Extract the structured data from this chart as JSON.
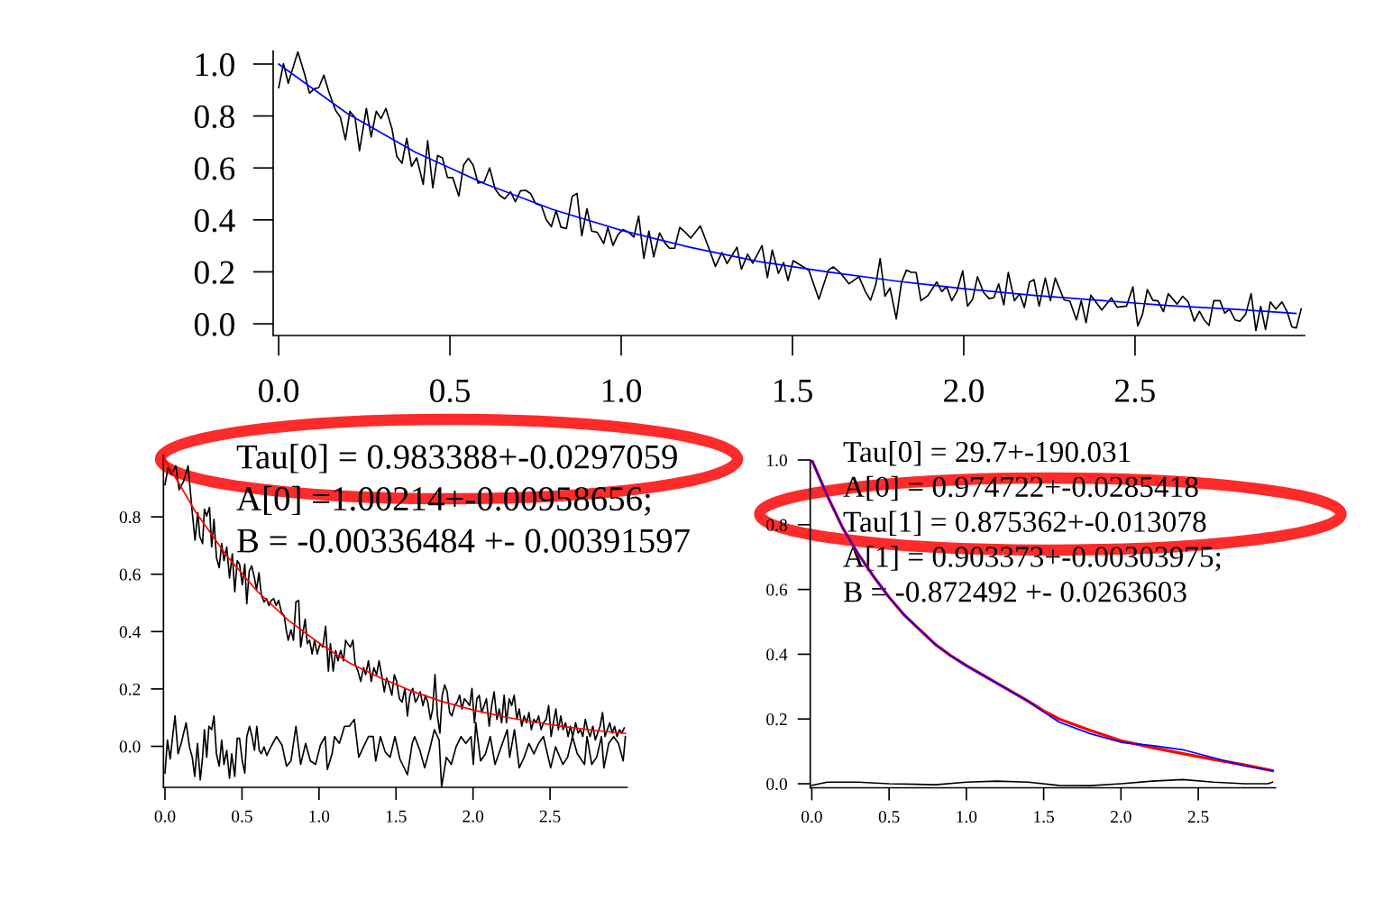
{
  "chart_data": [
    {
      "type": "line",
      "xlim": [
        -0.016,
        2.995
      ],
      "ylim": [
        -0.045,
        1.05
      ],
      "xticks": [
        {
          "value": 0,
          "label": "0.0"
        },
        {
          "value": 0.5,
          "label": "0.5"
        },
        {
          "value": 1.0,
          "label": "1.0"
        },
        {
          "value": 1.5,
          "label": "1.5"
        },
        {
          "value": 2.0,
          "label": "2.0"
        },
        {
          "value": 2.5,
          "label": "2.5"
        }
      ],
      "yticks": [
        {
          "value": 0,
          "label": "0.0"
        },
        {
          "value": 0.2,
          "label": "0.2"
        },
        {
          "value": 0.4,
          "label": "0.4"
        },
        {
          "value": 0.6,
          "label": "0.6"
        },
        {
          "value": 0.8,
          "label": "0.8"
        },
        {
          "value": 1.0,
          "label": "1.0"
        }
      ],
      "series": [
        {
          "color": "#000000",
          "x": [
            0,
            0.014,
            0.028,
            0.056,
            0.076,
            0.09,
            0.104,
            0.117,
            0.132,
            0.147,
            0.166,
            0.18,
            0.195,
            0.208,
            0.223,
            0.236,
            0.256,
            0.27,
            0.285,
            0.299,
            0.313,
            0.331,
            0.345,
            0.36,
            0.374,
            0.388,
            0.403,
            0.422,
            0.435,
            0.45,
            0.464,
            0.478,
            0.493,
            0.508,
            0.526,
            0.54,
            0.554,
            0.568,
            0.582,
            0.6,
            0.616,
            0.632,
            0.645,
            0.66,
            0.677,
            0.691,
            0.706,
            0.721,
            0.735,
            0.75,
            0.767,
            0.781,
            0.796,
            0.81,
            0.824,
            0.84,
            0.857,
            0.871,
            0.885,
            0.9,
            0.914,
            0.93,
            0.949,
            0.961,
            0.976,
            0.99,
            1.005,
            1.022,
            1.037,
            1.051,
            1.066,
            1.081,
            1.095,
            1.112,
            1.127,
            1.141,
            1.156,
            1.171,
            1.186,
            1.203,
            1.231,
            1.256,
            1.275,
            1.294,
            1.309,
            1.338,
            1.351,
            1.369,
            1.384,
            1.411,
            1.427,
            1.441,
            1.459,
            1.474,
            1.487,
            1.502,
            1.518,
            1.548,
            1.577,
            1.605,
            1.619,
            1.642,
            1.665,
            1.694,
            1.713,
            1.728,
            1.743,
            1.756,
            1.77,
            1.785,
            1.803,
            1.818,
            1.833,
            1.847,
            1.861,
            1.875,
            1.895,
            1.921,
            1.936,
            1.95,
            1.965,
            1.98,
            1.997,
            2.011,
            2.026,
            2.04,
            2.058,
            2.074,
            2.088,
            2.102,
            2.117,
            2.13,
            2.148,
            2.163,
            2.177,
            2.192,
            2.205,
            2.22,
            2.238,
            2.253,
            2.267,
            2.293,
            2.31,
            2.329,
            2.343,
            2.357,
            2.371,
            2.403,
            2.431,
            2.448,
            2.475,
            2.494,
            2.508,
            2.522,
            2.536,
            2.552,
            2.567,
            2.583,
            2.597,
            2.623,
            2.639,
            2.655,
            2.673,
            2.688,
            2.702,
            2.716,
            2.73,
            2.748,
            2.762,
            2.776,
            2.792,
            2.806,
            2.823,
            2.839,
            2.853,
            2.867,
            2.881,
            2.895,
            2.911,
            2.929,
            2.944,
            2.958,
            2.971,
            2.985
          ],
          "values": [
            0.909,
            1.001,
            0.926,
            1.047,
            0.96,
            0.888,
            0.905,
            0.909,
            0.957,
            0.891,
            0.822,
            0.796,
            0.709,
            0.818,
            0.794,
            0.666,
            0.829,
            0.719,
            0.818,
            0.79,
            0.829,
            0.75,
            0.644,
            0.618,
            0.714,
            0.606,
            0.639,
            0.537,
            0.705,
            0.524,
            0.648,
            0.639,
            0.563,
            0.563,
            0.492,
            0.611,
            0.637,
            0.61,
            0.542,
            0.546,
            0.6,
            0.519,
            0.495,
            0.481,
            0.508,
            0.47,
            0.512,
            0.514,
            0.502,
            0.463,
            0.455,
            0.401,
            0.374,
            0.436,
            0.372,
            0.367,
            0.491,
            0.502,
            0.339,
            0.443,
            0.357,
            0.352,
            0.309,
            0.371,
            0.302,
            0.342,
            0.363,
            0.352,
            0.334,
            0.415,
            0.252,
            0.357,
            0.258,
            0.35,
            0.312,
            0.291,
            0.291,
            0.371,
            0.354,
            0.33,
            0.377,
            0.291,
            0.221,
            0.274,
            0.232,
            0.295,
            0.21,
            0.268,
            0.233,
            0.301,
            0.178,
            0.284,
            0.194,
            0.236,
            0.167,
            0.243,
            0.23,
            0.206,
            0.095,
            0.207,
            0.219,
            0.193,
            0.154,
            0.181,
            0.124,
            0.091,
            0.15,
            0.251,
            0.106,
            0.138,
            0.019,
            0.158,
            0.207,
            0.198,
            0.198,
            0.089,
            0.108,
            0.161,
            0.124,
            0.144,
            0.089,
            0.124,
            0.204,
            0.068,
            0.095,
            0.181,
            0.121,
            0.097,
            0.101,
            0.154,
            0.073,
            0.198,
            0.089,
            0.116,
            0.063,
            0.161,
            0.17,
            0.068,
            0.176,
            0.089,
            0.176,
            0.092,
            0.087,
            0.015,
            0.089,
            0.004,
            0.11,
            0.053,
            0.1,
            0.064,
            0.068,
            0.142,
            -0.008,
            0.037,
            0.132,
            0.091,
            0.088,
            0.047,
            0.116,
            0.076,
            0.106,
            0.085,
            0.01,
            0.048,
            0.015,
            -0.006,
            0.089,
            0.089,
            0.041,
            0.056,
            0.015,
            0.01,
            0.037,
            0.116,
            -0.026,
            0.067,
            -0.022,
            0.084,
            0.057,
            0.084,
            0.047,
            -0.012,
            -0.016,
            0.057
          ]
        },
        {
          "color": "#0000ff",
          "x": [
            0,
            0.2,
            0.4,
            0.6,
            0.8,
            1.0,
            1.2,
            1.4,
            1.6,
            1.8,
            2.0,
            2.2,
            2.4,
            2.6,
            2.8,
            2.97
          ],
          "values": [
            1.0,
            0.81,
            0.66,
            0.54,
            0.44,
            0.36,
            0.295,
            0.24,
            0.2,
            0.165,
            0.135,
            0.11,
            0.09,
            0.07,
            0.055,
            0.04
          ]
        }
      ]
    },
    {
      "type": "line",
      "xlim": [
        -0.01,
        3.0
      ],
      "ylim": [
        -0.143,
        1.014
      ],
      "xticks": [
        {
          "value": 0,
          "label": "0.0"
        },
        {
          "value": 0.5,
          "label": "0.5"
        },
        {
          "value": 1.0,
          "label": "1.0"
        },
        {
          "value": 1.5,
          "label": "1.5"
        },
        {
          "value": 2.0,
          "label": "2.0"
        },
        {
          "value": 2.5,
          "label": "2.5"
        }
      ],
      "yticks": [
        {
          "value": 0,
          "label": "0.0"
        },
        {
          "value": 0.2,
          "label": "0.2"
        },
        {
          "value": 0.4,
          "label": "0.4"
        },
        {
          "value": 0.6,
          "label": "0.6"
        },
        {
          "value": 0.8,
          "label": "0.8"
        }
      ],
      "annotations": [
        "Tau[0] = 0.983388+-0.0297059",
        "A[0] =1.00214+-0.00958656;",
        "B = -0.00336484 +- 0.00391597"
      ],
      "series": [
        {
          "color": "#000000",
          "x": [
            0,
            0.02,
            0.043,
            0.07,
            0.092,
            0.121,
            0.15,
            0.177,
            0.195,
            0.213,
            0.226,
            0.244,
            0.256,
            0.271,
            0.289,
            0.303,
            0.318,
            0.334,
            0.352,
            0.368,
            0.383,
            0.401,
            0.419,
            0.437,
            0.453,
            0.469,
            0.484,
            0.502,
            0.518,
            0.531,
            0.547,
            0.563,
            0.581,
            0.594,
            0.61,
            0.626,
            0.643,
            0.659,
            0.675,
            0.691,
            0.706,
            0.722,
            0.738,
            0.756,
            0.774,
            0.787,
            0.8,
            0.818,
            0.834,
            0.85,
            0.868,
            0.881,
            0.895,
            0.91,
            0.924,
            0.939,
            0.955,
            0.971,
            0.989,
            1.007,
            1.025,
            1.043,
            1.061,
            1.074,
            1.092,
            1.108,
            1.123,
            1.141,
            1.159,
            1.173,
            1.186,
            1.204,
            1.22,
            1.235,
            1.253,
            1.271,
            1.289,
            1.303,
            1.321,
            1.339,
            1.356,
            1.374,
            1.39,
            1.406,
            1.424,
            1.439,
            1.455,
            1.473,
            1.489,
            1.504,
            1.522,
            1.54,
            1.558,
            1.574,
            1.59,
            1.608,
            1.626,
            1.639,
            1.657,
            1.675,
            1.691,
            1.706,
            1.724,
            1.738,
            1.753,
            1.769,
            1.785,
            1.8,
            1.816,
            1.832,
            1.848,
            1.863,
            1.881,
            1.897,
            1.913,
            1.928,
            1.944,
            1.962,
            1.978,
            1.993,
            2.009,
            2.025,
            2.04,
            2.056,
            2.072,
            2.087,
            2.105,
            2.121,
            2.137,
            2.155,
            2.17,
            2.186,
            2.202,
            2.217,
            2.235,
            2.251,
            2.267,
            2.285,
            2.3,
            2.316,
            2.332,
            2.348,
            2.363,
            2.379,
            2.395,
            2.41,
            2.426,
            2.442,
            2.457,
            2.475,
            2.491,
            2.507,
            2.522,
            2.538,
            2.554,
            2.57,
            2.585,
            2.601,
            2.617,
            2.632,
            2.648,
            2.666,
            2.682,
            2.697,
            2.713,
            2.729,
            2.744,
            2.76,
            2.778,
            2.794,
            2.809,
            2.825,
            2.841,
            2.857,
            2.872,
            2.888,
            2.904,
            2.919,
            2.935,
            2.951,
            2.966,
            2.982
          ],
          "values": [
            0.912,
            0.972,
            0.948,
            0.978,
            0.894,
            0.924,
            0.978,
            0.815,
            0.719,
            0.815,
            0.731,
            0.707,
            0.827,
            0.803,
            0.833,
            0.695,
            0.791,
            0.659,
            0.623,
            0.707,
            0.647,
            0.695,
            0.587,
            0.671,
            0.539,
            0.647,
            0.635,
            0.563,
            0.635,
            0.497,
            0.611,
            0.629,
            0.587,
            0.545,
            0.605,
            0.527,
            0.503,
            0.515,
            0.491,
            0.509,
            0.515,
            0.491,
            0.509,
            0.467,
            0.455,
            0.406,
            0.37,
            0.406,
            0.37,
            0.503,
            0.509,
            0.346,
            0.394,
            0.443,
            0.358,
            0.37,
            0.322,
            0.37,
            0.322,
            0.358,
            0.346,
            0.419,
            0.262,
            0.358,
            0.262,
            0.334,
            0.298,
            0.334,
            0.298,
            0.37,
            0.358,
            0.346,
            0.37,
            0.286,
            0.262,
            0.226,
            0.274,
            0.25,
            0.298,
            0.226,
            0.274,
            0.25,
            0.298,
            0.25,
            0.19,
            0.238,
            0.214,
            0.178,
            0.25,
            0.226,
            0.166,
            0.154,
            0.202,
            0.106,
            0.178,
            0.202,
            0.154,
            0.166,
            0.19,
            0.142,
            0.178,
            0.154,
            0.094,
            0.13,
            0.25,
            0.106,
            0.046,
            0.178,
            0.214,
            0.19,
            0.118,
            0.106,
            0.142,
            0.154,
            0.178,
            0.13,
            0.166,
            0.154,
            0.142,
            0.202,
            0.082,
            0.166,
            0.178,
            0.118,
            0.142,
            0.166,
            0.07,
            0.142,
            0.19,
            0.094,
            0.13,
            0.082,
            0.178,
            0.082,
            0.166,
            0.142,
            0.178,
            0.094,
            0.13,
            0.07,
            0.106,
            0.082,
            0.118,
            0.058,
            0.094,
            0.082,
            0.106,
            0.058,
            0.082,
            0.094,
            0.142,
            0.034,
            0.082,
            0.13,
            0.058,
            0.106,
            0.058,
            0.082,
            0.034,
            0.07,
            0.034,
            0.082,
            0.046,
            0.058,
            0.034,
            0.094,
            0.058,
            0.034,
            0.07,
            0.022,
            0.046,
            0.07,
            0.118,
            0.034,
            0.058,
            0.082,
            0.046,
            0.07,
            0.034,
            0.058,
            0.046,
            0.064
          ]
        },
        {
          "color": "#000000",
          "x": [
            0,
            0.016,
            0.034,
            0.052,
            0.065,
            0.085,
            0.105,
            0.137,
            0.159,
            0.177,
            0.193,
            0.211,
            0.229,
            0.244,
            0.256,
            0.271,
            0.285,
            0.303,
            0.318,
            0.334,
            0.352,
            0.368,
            0.383,
            0.401,
            0.419,
            0.433,
            0.453,
            0.469,
            0.484,
            0.502,
            0.518,
            0.531,
            0.549,
            0.565,
            0.581,
            0.596,
            0.612,
            0.626,
            0.643,
            0.661,
            0.693,
            0.724,
            0.76,
            0.789,
            0.818,
            0.85,
            0.881,
            0.913,
            0.944,
            0.978,
            1.009,
            1.04,
            1.054,
            1.085,
            1.101,
            1.132,
            1.166,
            1.197,
            1.229,
            1.258,
            1.289,
            1.321,
            1.352,
            1.368,
            1.399,
            1.43,
            1.462,
            1.493,
            1.525,
            1.574,
            1.605,
            1.621,
            1.655,
            1.686,
            1.717,
            1.749,
            1.78,
            1.796,
            1.827,
            1.859,
            1.89,
            1.922,
            1.953,
            1.987,
            2.002,
            2.018,
            2.049,
            2.081,
            2.112,
            2.143,
            2.175,
            2.222,
            2.238,
            2.269,
            2.3,
            2.332,
            2.363,
            2.395,
            2.426,
            2.457,
            2.504,
            2.536,
            2.583,
            2.614,
            2.646,
            2.677,
            2.724,
            2.74,
            2.771,
            2.803,
            2.834,
            2.85,
            2.881,
            2.913,
            2.944,
            2.975,
            2.989
          ],
          "values": [
            -0.093,
            0.022,
            -0.044,
            0.046,
            0.106,
            -0.026,
            0.01,
            0.082,
            -0.002,
            -0.038,
            -0.105,
            0.01,
            -0.117,
            -0.038,
            0.058,
            -0.038,
            0.07,
            0.058,
            0.106,
            -0.026,
            -0.069,
            0.022,
            -0.063,
            -0.014,
            -0.111,
            -0.026,
            -0.105,
            0.028,
            0.028,
            -0.051,
            -0.093,
            0.034,
            0.07,
            0.034,
            -0.014,
            0.07,
            -0.014,
            -0.026,
            -0.002,
            -0.032,
            0.004,
            0.034,
            0.004,
            -0.069,
            -0.051,
            0.07,
            -0.063,
            0.01,
            -0.051,
            -0.063,
            0.004,
            0.034,
            -0.081,
            -0.026,
            0.034,
            0.01,
            0.07,
            0.07,
            0.094,
            -0.038,
            -0.002,
            0.034,
            0.034,
            -0.051,
            0.034,
            -0.02,
            -0.038,
            0.034,
            -0.044,
            -0.099,
            0.01,
            0.034,
            -0.014,
            -0.075,
            -0.014,
            0.058,
            0.022,
            -0.141,
            -0.038,
            -0.063,
            -0.002,
            0.034,
            0.01,
            0.034,
            -0.063,
            0.082,
            -0.051,
            -0.026,
            0.034,
            -0.063,
            -0.014,
            0.058,
            -0.038,
            0.058,
            -0.075,
            -0.038,
            0.01,
            -0.026,
            0.01,
            0.034,
            -0.075,
            -0.002,
            -0.063,
            -0.038,
            0.034,
            -0.026,
            -0.063,
            0.034,
            -0.063,
            -0.038,
            0.034,
            -0.075,
            0.01,
            0.034,
            0.01,
            -0.051,
            0.034
          ]
        },
        {
          "color": "#ff0000",
          "x": [
            0,
            0.2,
            0.4,
            0.6,
            0.8,
            1.0,
            1.2,
            1.4,
            1.6,
            1.8,
            2.0,
            2.2,
            2.4,
            2.6,
            2.8,
            2.99
          ],
          "values": [
            1.0,
            0.816,
            0.665,
            0.54,
            0.44,
            0.36,
            0.29,
            0.238,
            0.193,
            0.156,
            0.127,
            0.103,
            0.084,
            0.068,
            0.055,
            0.045
          ]
        }
      ]
    },
    {
      "type": "line",
      "xlim": [
        -0.01,
        3.0
      ],
      "ylim": [
        -0.0125,
        1.0
      ],
      "xticks": [
        {
          "value": 0,
          "label": "0.0"
        },
        {
          "value": 0.5,
          "label": "0.5"
        },
        {
          "value": 1.0,
          "label": "1.0"
        },
        {
          "value": 1.5,
          "label": "1.5"
        },
        {
          "value": 2.0,
          "label": "2.0"
        },
        {
          "value": 2.5,
          "label": "2.5"
        }
      ],
      "yticks": [
        {
          "value": 0,
          "label": "0.0"
        },
        {
          "value": 0.2,
          "label": "0.2"
        },
        {
          "value": 0.4,
          "label": "0.4"
        },
        {
          "value": 0.6,
          "label": "0.6"
        },
        {
          "value": 0.8,
          "label": "0.8"
        },
        {
          "value": 1.0,
          "label": "1.0"
        }
      ],
      "annotations": [
        "Tau[0] = 29.7+-190.031",
        "A[0] = 0.974722+-0.0285418",
        "Tau[1] = 0.875362+-0.013078",
        "A[1] = 0.903373+-0.00303975;",
        "B = -0.872492 +- 0.0263603"
      ],
      "series": [
        {
          "color": "#0000ff",
          "x": [
            0,
            0.1,
            0.2,
            0.3,
            0.4,
            0.5,
            0.6,
            0.7,
            0.8,
            0.9,
            1.0,
            1.2,
            1.4,
            1.5,
            1.6,
            1.8,
            2.0,
            2.2,
            2.4,
            2.6,
            2.8,
            2.98
          ],
          "values": [
            1.0,
            0.89,
            0.79,
            0.71,
            0.64,
            0.576,
            0.52,
            0.475,
            0.43,
            0.395,
            0.365,
            0.31,
            0.255,
            0.222,
            0.19,
            0.155,
            0.128,
            0.118,
            0.105,
            0.08,
            0.055,
            0.04
          ]
        },
        {
          "color": "#ff0000",
          "x": [
            0,
            0.1,
            0.2,
            0.3,
            0.4,
            0.5,
            0.6,
            0.7,
            0.8,
            0.9,
            1.0,
            1.2,
            1.4,
            1.5,
            1.6,
            1.8,
            2.0,
            2.2,
            2.4,
            2.6,
            2.8,
            2.98
          ],
          "values": [
            1.0,
            0.89,
            0.79,
            0.71,
            0.64,
            0.576,
            0.52,
            0.475,
            0.43,
            0.395,
            0.365,
            0.31,
            0.255,
            0.225,
            0.2,
            0.165,
            0.133,
            0.112,
            0.093,
            0.075,
            0.058,
            0.04
          ]
        },
        {
          "color": "#000000",
          "x": [
            0,
            0.1,
            0.3,
            0.5,
            0.8,
            1.0,
            1.2,
            1.4,
            1.6,
            1.8,
            2.0,
            2.2,
            2.4,
            2.6,
            2.8,
            2.95,
            2.98
          ],
          "values": [
            -0.005,
            0.005,
            0.005,
            0.0,
            -0.003,
            0.005,
            0.008,
            0.005,
            -0.005,
            -0.006,
            0.0,
            0.008,
            0.013,
            0.005,
            0.0,
            0.0,
            0.005
          ]
        }
      ]
    }
  ]
}
